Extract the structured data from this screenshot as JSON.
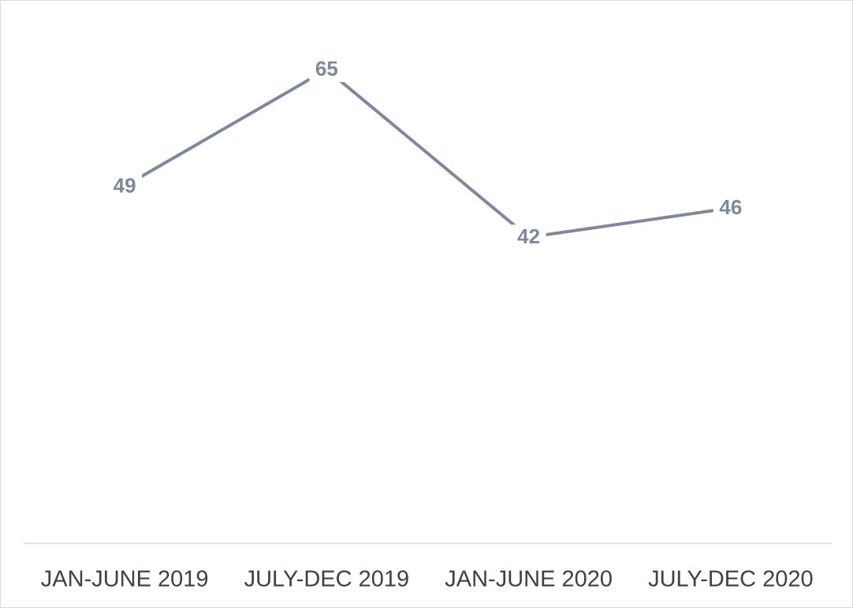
{
  "chart_data": {
    "type": "line",
    "categories": [
      "JAN-JUNE 2019",
      "JULY-DEC 2019",
      "JAN-JUNE 2020",
      "JULY-DEC 2020"
    ],
    "series": [
      {
        "color": "#7f8798",
        "values": [
          49,
          65,
          42,
          46
        ]
      }
    ],
    "ylim": [
      0,
      70
    ]
  }
}
